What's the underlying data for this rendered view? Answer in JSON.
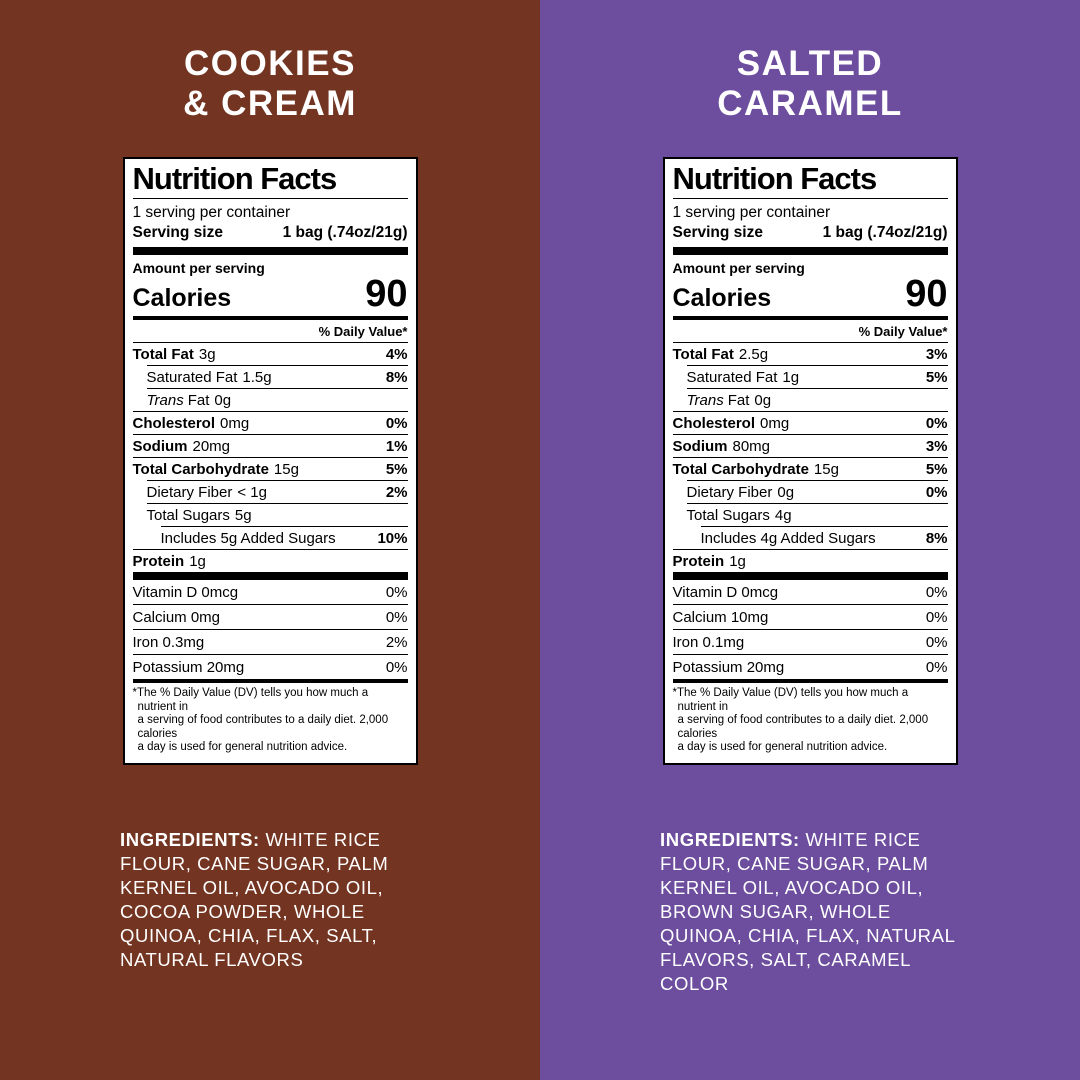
{
  "panels": [
    {
      "name": "Cookies & Cream",
      "bg": "#733522",
      "title_line1": "COOKIES",
      "title_line2": "& CREAM",
      "label": {
        "title": "Nutrition Facts",
        "servings_per_container": "1 serving per container",
        "serving_size_label": "Serving size",
        "serving_size_value": "1 bag (.74oz/21g)",
        "amount_per_serving": "Amount per serving",
        "calories_label": "Calories",
        "calories_value": "90",
        "daily_value_header": "% Daily Value*",
        "rows": [
          {
            "name": "Total Fat",
            "value": "3g",
            "dv": "4%"
          },
          {
            "name": "Saturated Fat",
            "value": "1.5g",
            "dv": "8%"
          },
          {
            "name_italic": "Trans",
            "name": "Fat",
            "value": "0g",
            "dv": ""
          },
          {
            "name": "Cholesterol",
            "value": "0mg",
            "dv": "0%"
          },
          {
            "name": "Sodium",
            "value": "20mg",
            "dv": "1%"
          },
          {
            "name": "Total Carbohydrate",
            "value": "15g",
            "dv": "5%"
          },
          {
            "name": "Dietary Fiber",
            "value": "< 1g",
            "dv": "2%"
          },
          {
            "name": "Total Sugars",
            "value": "5g",
            "dv": ""
          },
          {
            "name": "Includes 5g Added Sugars",
            "value": "",
            "dv": "10%"
          },
          {
            "name": "Protein",
            "value": "1g",
            "dv": ""
          }
        ],
        "vitamins": [
          {
            "name": "Vitamin D 0mcg",
            "dv": "0%"
          },
          {
            "name": "Calcium 0mg",
            "dv": "0%"
          },
          {
            "name": "Iron 0.3mg",
            "dv": "2%"
          },
          {
            "name": "Potassium 20mg",
            "dv": "0%"
          }
        ],
        "footnote": "*The % Daily Value (DV) tells you how much a nutrient in\na serving of food contributes to a daily diet. 2,000 calories\na day is used for general nutrition advice."
      },
      "ingredients_label": "INGREDIENTS:",
      "ingredients_text": "WHITE RICE\nFLOUR, CANE SUGAR, PALM\nKERNEL OIL, AVOCADO OIL,\nCOCOA POWDER, WHOLE\nQUINOA, CHIA, FLAX, SALT,\nNATURAL FLAVORS"
    },
    {
      "name": "Salted Caramel",
      "bg": "#6C4D9E",
      "title_line1": "SALTED",
      "title_line2": "CARAMEL",
      "label": {
        "title": "Nutrition Facts",
        "servings_per_container": "1 serving per container",
        "serving_size_label": "Serving size",
        "serving_size_value": "1 bag (.74oz/21g)",
        "amount_per_serving": "Amount per serving",
        "calories_label": "Calories",
        "calories_value": "90",
        "daily_value_header": "% Daily Value*",
        "rows": [
          {
            "name": "Total Fat",
            "value": "2.5g",
            "dv": "3%"
          },
          {
            "name": "Saturated Fat",
            "value": "1g",
            "dv": "5%"
          },
          {
            "name_italic": "Trans",
            "name": "Fat",
            "value": "0g",
            "dv": ""
          },
          {
            "name": "Cholesterol",
            "value": "0mg",
            "dv": "0%"
          },
          {
            "name": "Sodium",
            "value": "80mg",
            "dv": "3%"
          },
          {
            "name": "Total Carbohydrate",
            "value": "15g",
            "dv": "5%"
          },
          {
            "name": "Dietary Fiber",
            "value": "0g",
            "dv": "0%"
          },
          {
            "name": "Total Sugars",
            "value": "4g",
            "dv": ""
          },
          {
            "name": "Includes 4g Added Sugars",
            "value": "",
            "dv": "8%"
          },
          {
            "name": "Protein",
            "value": "1g",
            "dv": ""
          }
        ],
        "vitamins": [
          {
            "name": "Vitamin D 0mcg",
            "dv": "0%"
          },
          {
            "name": "Calcium 10mg",
            "dv": "0%"
          },
          {
            "name": "Iron 0.1mg",
            "dv": "0%"
          },
          {
            "name": "Potassium 20mg",
            "dv": "0%"
          }
        ],
        "footnote": "*The % Daily Value (DV) tells you how much a nutrient in\na serving of food contributes to a daily diet. 2,000 calories\na day is used for general nutrition advice."
      },
      "ingredients_label": "INGREDIENTS:",
      "ingredients_text": "WHITE RICE\nFLOUR, CANE SUGAR, PALM\nKERNEL OIL, AVOCADO OIL,\nBROWN SUGAR, WHOLE\nQUINOA, CHIA, FLAX, NATURAL\nFLAVORS, SALT, CARAMEL COLOR"
    }
  ]
}
